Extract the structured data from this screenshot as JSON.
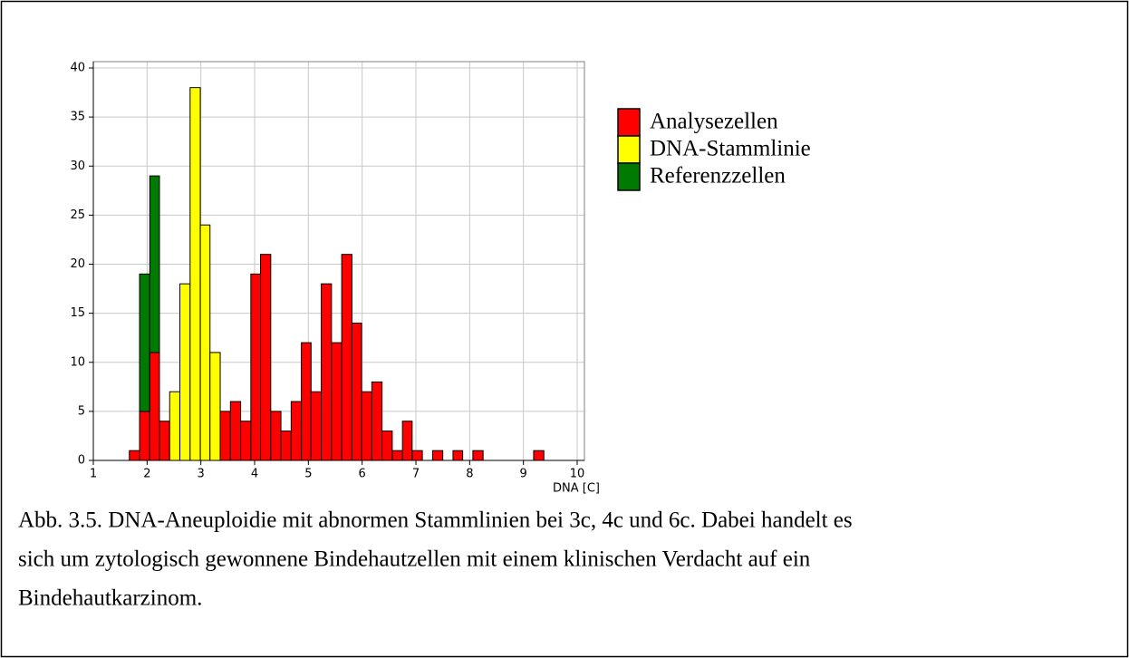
{
  "chart_data": {
    "type": "histogram",
    "xlabel": "DNA [C]",
    "bins": [
      1.67,
      1.86,
      2.05,
      2.23,
      2.42,
      2.61,
      2.8,
      2.99,
      3.17,
      3.36,
      3.55,
      3.74,
      3.93,
      4.11,
      4.3,
      4.49,
      4.68,
      4.87,
      5.05,
      5.24,
      5.43,
      5.62,
      5.81,
      5.99,
      6.18,
      6.37,
      6.56,
      6.75,
      6.93,
      7.12,
      7.31,
      7.5,
      7.69,
      7.87,
      8.06,
      8.25,
      8.44,
      8.63,
      8.81,
      9.0,
      9.19,
      9.38
    ],
    "series": [
      {
        "name": "Analysezellen",
        "color": "#ff0000",
        "values": [
          1,
          5,
          11,
          4,
          0,
          0,
          0,
          0,
          0,
          5,
          6,
          4,
          19,
          21,
          5,
          3,
          6,
          12,
          7,
          18,
          12,
          21,
          14,
          7,
          8,
          3,
          1,
          4,
          1,
          0,
          1,
          0,
          1,
          0,
          1,
          0,
          0,
          0,
          0,
          0,
          1
        ]
      },
      {
        "name": "DNA-Stammlinie",
        "color": "#ffff00",
        "values": [
          0,
          0,
          0,
          0,
          7,
          18,
          38,
          24,
          11,
          0,
          0,
          0,
          0,
          0,
          0,
          0,
          0,
          0,
          0,
          0,
          0,
          0,
          0,
          0,
          0,
          0,
          0,
          0,
          0,
          0,
          0,
          0,
          0,
          0,
          0,
          0,
          0,
          0,
          0,
          0,
          0
        ]
      },
      {
        "name": "Referenzzellen",
        "color": "#007a00",
        "values": [
          0,
          14,
          18,
          0,
          0,
          0,
          0,
          0,
          0,
          0,
          0,
          0,
          0,
          0,
          0,
          0,
          0,
          0,
          0,
          0,
          0,
          0,
          0,
          0,
          0,
          0,
          0,
          0,
          0,
          0,
          0,
          0,
          0,
          0,
          0,
          0,
          0,
          0,
          0,
          0,
          0
        ]
      }
    ],
    "stacked": true,
    "xlim": [
      1,
      10
    ],
    "xticks": [
      1,
      2,
      3,
      4,
      5,
      6,
      7,
      8,
      9,
      10
    ],
    "ylim": [
      0,
      40
    ],
    "yticks": [
      0,
      5,
      10,
      15,
      20,
      25,
      30,
      35,
      40
    ],
    "grid": true
  },
  "caption": [
    "Abb. 3.5. DNA-Aneuploidie mit abnormen Stammlinien bei 3c, 4c und 6c. Dabei handelt es",
    "sich um zytologisch gewonnene Bindehautzellen mit einem klinischen Verdacht auf ein",
    "Bindehautkarzinom."
  ]
}
